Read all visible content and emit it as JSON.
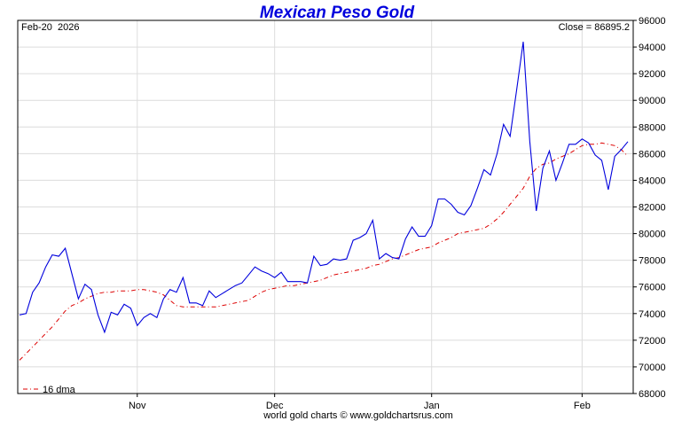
{
  "chart_data": {
    "type": "line",
    "title": "Mexican Peso Gold",
    "date_label": "Feb-20  2026",
    "close_label": "Close = 86895.2",
    "footer": "world gold charts © www.goldchartsrus.com",
    "legend_label": "16 dma",
    "legend_placement": "bottom-left",
    "grid": true,
    "colors": {
      "price": "#0000dd",
      "dma": "#dd0000",
      "title": "#0000dd",
      "grid": "#dcdcdc"
    },
    "ylim": [
      68000,
      96000
    ],
    "y_ticks": [
      "96000",
      "94000",
      "92000",
      "90000",
      "88000",
      "86000",
      "84000",
      "82000",
      "80000",
      "78000",
      "76000",
      "74000",
      "72000",
      "70000",
      "68000"
    ],
    "x_ticks": [
      {
        "label": "Nov",
        "index": 18
      },
      {
        "label": "Dec",
        "index": 39
      },
      {
        "label": "Jan",
        "index": 63
      },
      {
        "label": "Feb",
        "index": 86
      }
    ],
    "series": [
      {
        "name": "Close",
        "values": [
          73900,
          74000,
          75600,
          76300,
          77500,
          78400,
          78300,
          78900,
          77000,
          75100,
          76200,
          75800,
          73900,
          72600,
          74100,
          73900,
          74700,
          74400,
          73100,
          73700,
          74000,
          73700,
          75100,
          75800,
          75600,
          76700,
          74800,
          74800,
          74600,
          75700,
          75200,
          75500,
          75800,
          76100,
          76300,
          76900,
          77500,
          77200,
          77000,
          76700,
          77100,
          76400,
          76400,
          76400,
          76300,
          78300,
          77600,
          77700,
          78100,
          78000,
          78100,
          79500,
          79700,
          80000,
          81000,
          78100,
          78500,
          78200,
          78100,
          79600,
          80500,
          79800,
          79800,
          80600,
          82600,
          82600,
          82200,
          81600,
          81400,
          82100,
          83400,
          84800,
          84400,
          86000,
          88200,
          87300,
          90800,
          94400,
          86900,
          81700,
          84900,
          86200,
          84000,
          85300,
          86700,
          86700,
          87100,
          86800,
          85900,
          85500,
          83300,
          85800,
          86300,
          86900
        ]
      },
      {
        "name": "16 dma",
        "values": [
          70500,
          71000,
          71500,
          72000,
          72500,
          73000,
          73600,
          74200,
          74600,
          74800,
          75100,
          75300,
          75500,
          75600,
          75600,
          75700,
          75700,
          75700,
          75800,
          75800,
          75700,
          75600,
          75400,
          75000,
          74600,
          74500,
          74500,
          74500,
          74500,
          74500,
          74500,
          74600,
          74700,
          74800,
          74900,
          75000,
          75300,
          75600,
          75800,
          75900,
          76000,
          76100,
          76100,
          76200,
          76300,
          76400,
          76500,
          76700,
          76900,
          77000,
          77100,
          77200,
          77300,
          77400,
          77600,
          77700,
          77900,
          78100,
          78200,
          78400,
          78600,
          78800,
          78900,
          79000,
          79300,
          79500,
          79700,
          80000,
          80100,
          80200,
          80300,
          80400,
          80700,
          81100,
          81600,
          82200,
          82800,
          83400,
          84300,
          84900,
          85200,
          85300,
          85600,
          85800,
          86000,
          86300,
          86600,
          86700,
          86700,
          86800,
          86700,
          86600,
          86300,
          85800
        ]
      }
    ]
  }
}
